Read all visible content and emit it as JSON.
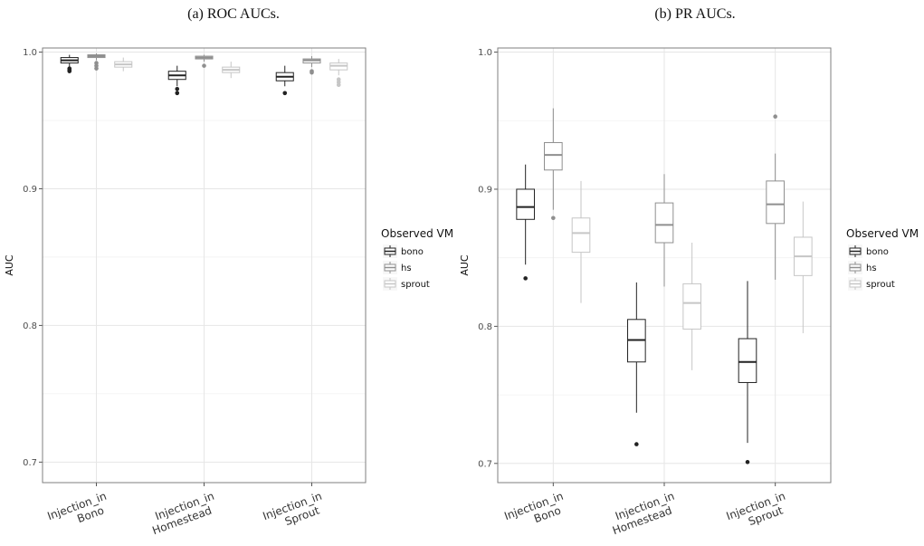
{
  "chart_data": [
    {
      "type": "box",
      "caption": "(a) ROC AUCs.",
      "ylabel": "AUC",
      "ylim": [
        0.685,
        1.003
      ],
      "yticks": [
        0.7,
        0.8,
        0.9,
        1.0
      ],
      "ytick_labels": [
        "0.7",
        "0.8",
        "0.9",
        "1.0"
      ],
      "categories": [
        "Injection_in\nBono",
        "Injection_in\nHomestead",
        "Injection_in\nSprout"
      ],
      "legend": {
        "title": "Observed VM",
        "position": "right"
      },
      "series": [
        {
          "name": "bono",
          "color": "#222222",
          "boxes": [
            {
              "min": 0.989,
              "q1": 0.992,
              "median": 0.994,
              "q3": 0.996,
              "max": 0.998,
              "outliers": [
                0.988,
                0.987,
                0.986
              ]
            },
            {
              "min": 0.975,
              "q1": 0.98,
              "median": 0.983,
              "q3": 0.986,
              "max": 0.99,
              "outliers": [
                0.973,
                0.97
              ]
            },
            {
              "min": 0.975,
              "q1": 0.979,
              "median": 0.982,
              "q3": 0.985,
              "max": 0.99,
              "outliers": [
                0.97
              ]
            }
          ]
        },
        {
          "name": "hs",
          "color": "#8f8f8f",
          "boxes": [
            {
              "min": 0.994,
              "q1": 0.996,
              "median": 0.997,
              "q3": 0.998,
              "max": 0.999,
              "outliers": [
                0.992,
                0.99,
                0.988
              ]
            },
            {
              "min": 0.993,
              "q1": 0.995,
              "median": 0.996,
              "q3": 0.997,
              "max": 0.998,
              "outliers": [
                0.99
              ]
            },
            {
              "min": 0.989,
              "q1": 0.992,
              "median": 0.994,
              "q3": 0.995,
              "max": 0.997,
              "outliers": [
                0.986,
                0.985
              ]
            }
          ]
        },
        {
          "name": "sprout",
          "color": "#c6c6c6",
          "boxes": [
            {
              "min": 0.986,
              "q1": 0.989,
              "median": 0.991,
              "q3": 0.993,
              "max": 0.996,
              "outliers": []
            },
            {
              "min": 0.981,
              "q1": 0.985,
              "median": 0.987,
              "q3": 0.989,
              "max": 0.993,
              "outliers": []
            },
            {
              "min": 0.983,
              "q1": 0.987,
              "median": 0.99,
              "q3": 0.992,
              "max": 0.995,
              "outliers": [
                0.98,
                0.978,
                0.976
              ]
            }
          ]
        }
      ]
    },
    {
      "type": "box",
      "caption": "(b) PR AUCs.",
      "ylabel": "AUC",
      "ylim": [
        0.686,
        1.003
      ],
      "yticks": [
        0.7,
        0.8,
        0.9,
        1.0
      ],
      "ytick_labels": [
        "0.7",
        "0.8",
        "0.9",
        "1.0"
      ],
      "categories": [
        "Injection_in\nBono",
        "Injection_in\nHomestead",
        "Injection_in\nSprout"
      ],
      "legend": {
        "title": "Observed VM",
        "position": "right"
      },
      "series": [
        {
          "name": "bono",
          "color": "#222222",
          "boxes": [
            {
              "min": 0.845,
              "q1": 0.878,
              "median": 0.887,
              "q3": 0.9,
              "max": 0.918,
              "outliers": [
                0.835
              ]
            },
            {
              "min": 0.737,
              "q1": 0.774,
              "median": 0.79,
              "q3": 0.805,
              "max": 0.832,
              "outliers": [
                0.714
              ]
            },
            {
              "min": 0.715,
              "q1": 0.759,
              "median": 0.774,
              "q3": 0.791,
              "max": 0.833,
              "outliers": [
                0.701
              ]
            }
          ]
        },
        {
          "name": "hs",
          "color": "#8f8f8f",
          "boxes": [
            {
              "min": 0.885,
              "q1": 0.914,
              "median": 0.925,
              "q3": 0.934,
              "max": 0.959,
              "outliers": [
                0.879
              ]
            },
            {
              "min": 0.829,
              "q1": 0.861,
              "median": 0.874,
              "q3": 0.89,
              "max": 0.911,
              "outliers": []
            },
            {
              "min": 0.834,
              "q1": 0.875,
              "median": 0.889,
              "q3": 0.906,
              "max": 0.926,
              "outliers": [
                0.953
              ]
            }
          ]
        },
        {
          "name": "sprout",
          "color": "#c6c6c6",
          "boxes": [
            {
              "min": 0.817,
              "q1": 0.854,
              "median": 0.868,
              "q3": 0.879,
              "max": 0.906,
              "outliers": []
            },
            {
              "min": 0.768,
              "q1": 0.798,
              "median": 0.817,
              "q3": 0.831,
              "max": 0.861,
              "outliers": []
            },
            {
              "min": 0.795,
              "q1": 0.837,
              "median": 0.851,
              "q3": 0.865,
              "max": 0.891,
              "outliers": []
            }
          ]
        }
      ]
    }
  ]
}
